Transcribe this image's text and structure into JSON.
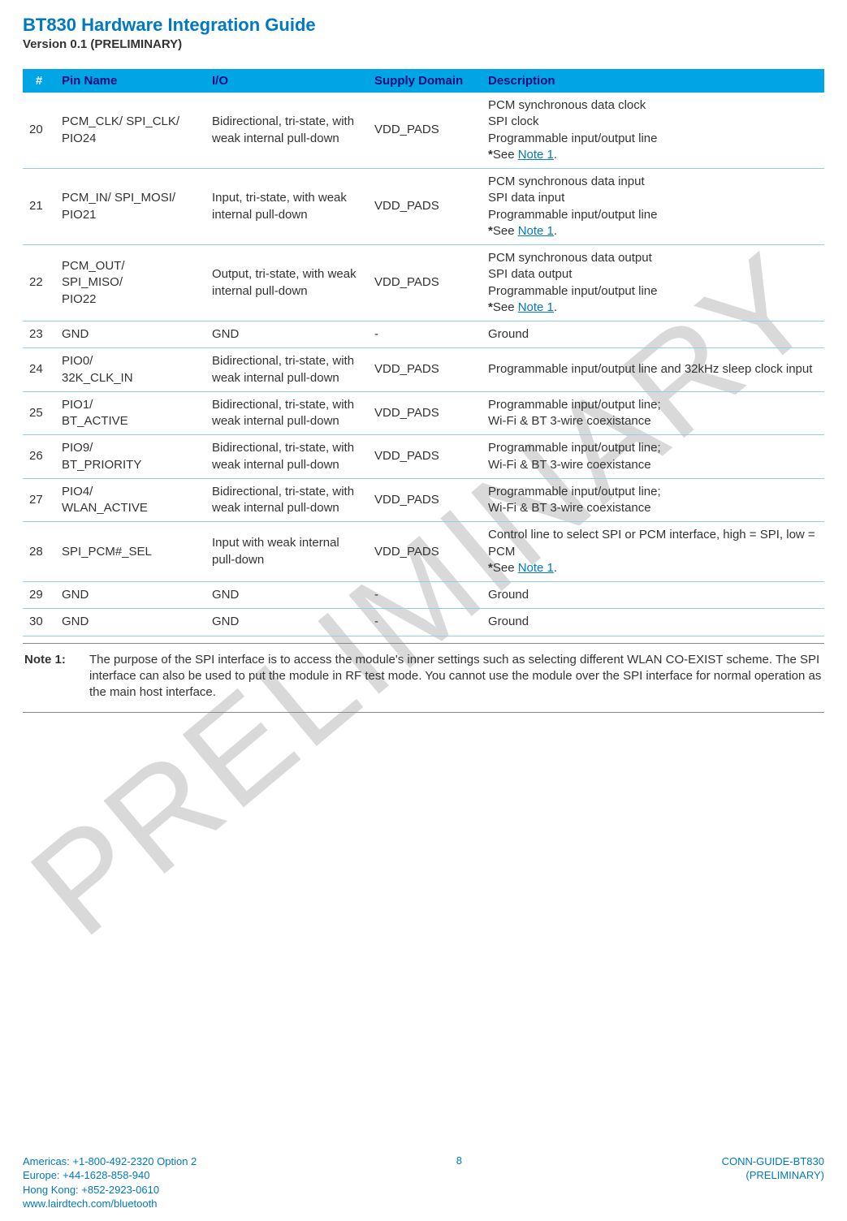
{
  "header": {
    "title": "BT830 Hardware Integration Guide",
    "version": "Version 0.1 (PRELIMINARY)"
  },
  "watermark": "PRELIMINARY",
  "table": {
    "columns": {
      "num": "#",
      "pin": "Pin Name",
      "io": "I/O",
      "sd": "Supply Domain",
      "desc": "Description"
    },
    "rows": [
      {
        "num": "20",
        "pin": "PCM_CLK/ SPI_CLK/ PIO24",
        "io": "Bidirectional, tri-state, with weak internal pull-down",
        "sd": "VDD_PADS",
        "desc_lines": [
          "PCM synchronous data clock",
          "SPI clock",
          "Programmable input/output line"
        ],
        "see_note": true
      },
      {
        "num": "21",
        "pin": "PCM_IN/ SPI_MOSI/ PIO21",
        "io": "Input, tri-state, with weak internal pull-down",
        "sd": "VDD_PADS",
        "desc_lines": [
          "PCM synchronous data input",
          "SPI data input",
          "Programmable input/output line"
        ],
        "see_note": true
      },
      {
        "num": "22",
        "pin": "PCM_OUT/\nSPI_MISO/\nPIO22",
        "io": "Output, tri-state, with weak internal pull-down",
        "sd": "VDD_PADS",
        "desc_lines": [
          "PCM synchronous data output",
          "SPI data output",
          "Programmable input/output line"
        ],
        "see_note": true
      },
      {
        "num": "23",
        "pin": "GND",
        "io": "GND",
        "sd": "-",
        "desc_lines": [
          "Ground"
        ],
        "see_note": false
      },
      {
        "num": "24",
        "pin": "PIO0/\n32K_CLK_IN",
        "io": "Bidirectional, tri-state, with weak internal pull-down",
        "sd": "VDD_PADS",
        "desc_lines": [
          "Programmable input/output line and 32kHz sleep clock input"
        ],
        "see_note": false
      },
      {
        "num": "25",
        "pin": "PIO1/\nBT_ACTIVE",
        "io": "Bidirectional, tri-state, with weak internal pull-down",
        "sd": "VDD_PADS",
        "desc_lines": [
          "Programmable input/output line;",
          "Wi-Fi & BT 3-wire coexistance"
        ],
        "see_note": false
      },
      {
        "num": "26",
        "pin": "PIO9/\nBT_PRIORITY",
        "io": "Bidirectional, tri-state, with weak internal pull-down",
        "sd": "VDD_PADS",
        "desc_lines": [
          "Programmable input/output line;",
          "Wi-Fi & BT 3-wire coexistance"
        ],
        "see_note": false
      },
      {
        "num": "27",
        "pin": "PIO4/\nWLAN_ACTIVE",
        "io": "Bidirectional, tri-state, with weak internal pull-down",
        "sd": "VDD_PADS",
        "desc_lines": [
          "Programmable input/output line;",
          "Wi-Fi & BT 3-wire coexistance"
        ],
        "see_note": false
      },
      {
        "num": "28",
        "pin": "SPI_PCM#_SEL",
        "io": "Input with weak internal pull-down",
        "sd": "VDD_PADS",
        "desc_lines": [
          "Control line to select SPI or PCM interface, high = SPI, low = PCM"
        ],
        "see_note": true
      },
      {
        "num": "29",
        "pin": "GND",
        "io": "GND",
        "sd": "-",
        "desc_lines": [
          "Ground"
        ],
        "see_note": false
      },
      {
        "num": "30",
        "pin": "GND",
        "io": "GND",
        "sd": "-",
        "desc_lines": [
          "Ground"
        ],
        "see_note": false
      }
    ]
  },
  "note": {
    "label": "Note 1:",
    "text": "The purpose of the SPI interface is to access the module's inner settings such as selecting different WLAN CO-EXIST scheme. The SPI interface can also be used to put the module in RF test mode. You cannot use the module over the SPI interface for normal operation as the main host interface.",
    "link_text": "Note 1",
    "star_see": "*See "
  },
  "footer": {
    "left": [
      "Americas: +1-800-492-2320 Option 2",
      "Europe: +44-1628-858-940",
      "Hong Kong: +852-2923-0610",
      "www.lairdtech.com/bluetooth"
    ],
    "page": "8",
    "right": [
      "CONN-GUIDE-BT830",
      "(PRELIMINARY)"
    ]
  },
  "colors": {
    "brand_blue": "#0079c1",
    "header_bg": "#00a5e5",
    "header_text": "#0b0b7a",
    "row_border": "#90cfe8",
    "watermark": "#d9d9d9"
  }
}
